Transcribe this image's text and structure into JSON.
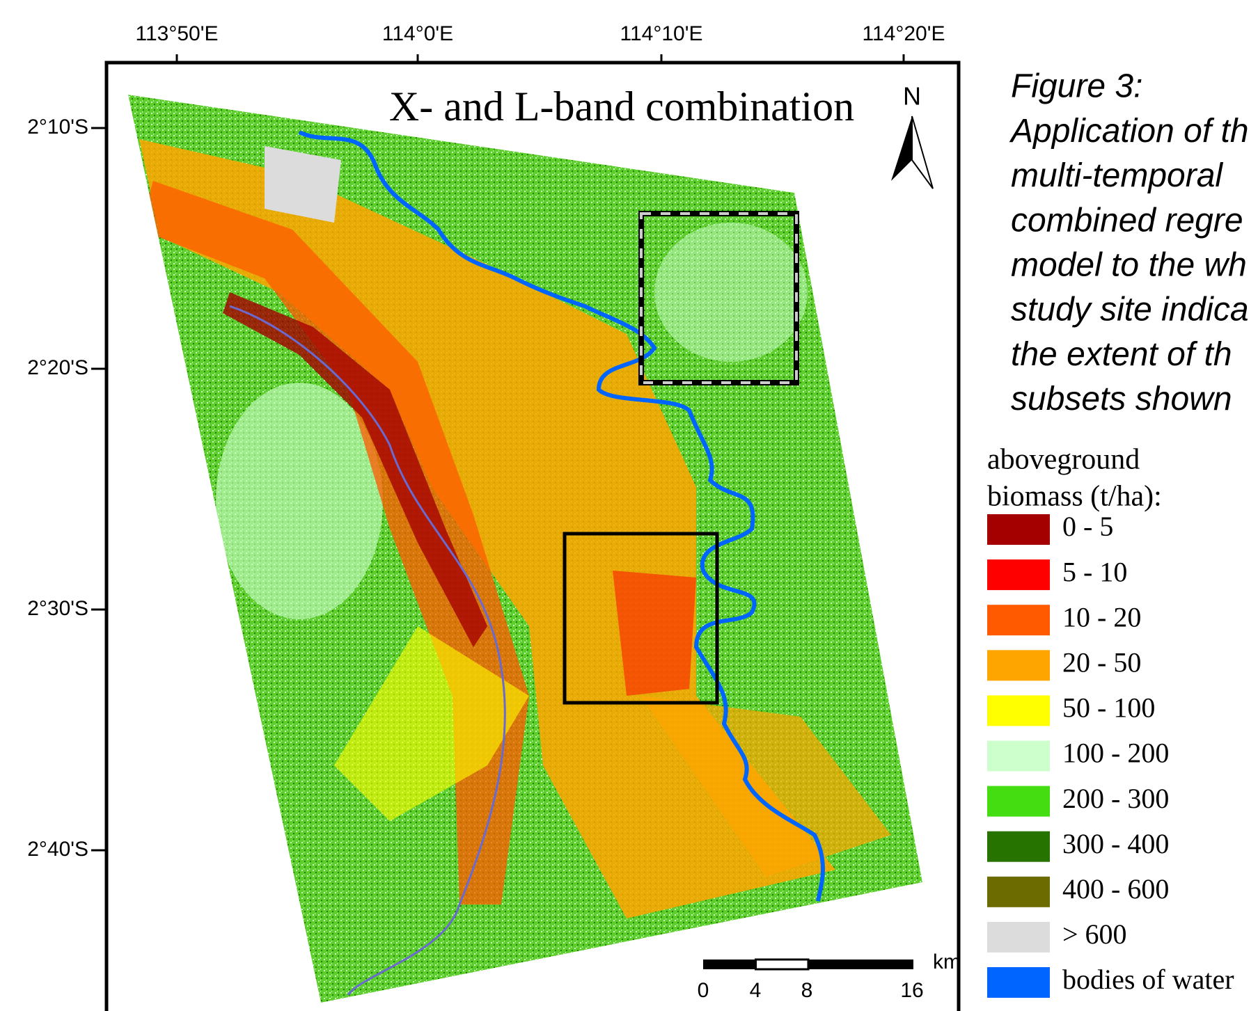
{
  "map": {
    "title": "X- and L-band combination",
    "north": "N",
    "x_ticks": [
      "113°50'E",
      "114°0'E",
      "114°10'E",
      "114°20'E"
    ],
    "y_ticks": [
      "2°10'S",
      "2°20'S",
      "2°30'S",
      "2°40'S"
    ],
    "scale_bar": {
      "unit": "km",
      "labels": [
        "0",
        "4",
        "8",
        "16"
      ]
    },
    "legend": {
      "title": [
        "aboveground",
        "biomass (t/ha):"
      ],
      "items": [
        {
          "label": "0 - 5",
          "color": "#a50000"
        },
        {
          "label": "5 - 10",
          "color": "#ff0000"
        },
        {
          "label": "10 - 20",
          "color": "#ff5a00"
        },
        {
          "label": "20 - 50",
          "color": "#ffa500"
        },
        {
          "label": "50 - 100",
          "color": "#ffff00"
        },
        {
          "label": "100 - 200",
          "color": "#ccffcc"
        },
        {
          "label": "200 - 300",
          "color": "#44dd11"
        },
        {
          "label": "300 - 400",
          "color": "#267300"
        },
        {
          "label": "400 - 600",
          "color": "#6b6b00"
        },
        {
          "label": "> 600",
          "color": "#dcdcdc"
        },
        {
          "label": "bodies of water",
          "color": "#0064ff"
        }
      ]
    }
  },
  "caption": [
    "Figure 3:",
    "Application of th",
    "multi-temporal",
    "combined regre",
    "model to the wh",
    "study site indica",
    "the extent of th",
    "subsets shown"
  ]
}
